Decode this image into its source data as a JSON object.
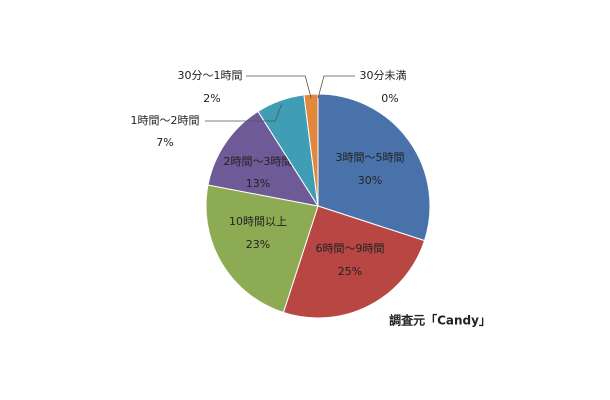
{
  "chart_data": {
    "type": "pie",
    "categories": [
      "3時間〜5時間",
      "6時間〜9時間",
      "10時間以上",
      "2時間〜3時間",
      "1時間〜2時間",
      "30分〜1時間",
      "30分未満"
    ],
    "values": [
      30,
      25,
      23,
      13,
      7,
      2,
      0
    ],
    "value_labels": [
      "30%",
      "25%",
      "23%",
      "13%",
      "7%",
      "2%",
      "0%"
    ],
    "colors": [
      "#4a72aa",
      "#b84744",
      "#8dab53",
      "#6d5a97",
      "#3f9db6",
      "#e2883c",
      "#9bb5d8"
    ],
    "source": "調査元「Candy」"
  }
}
